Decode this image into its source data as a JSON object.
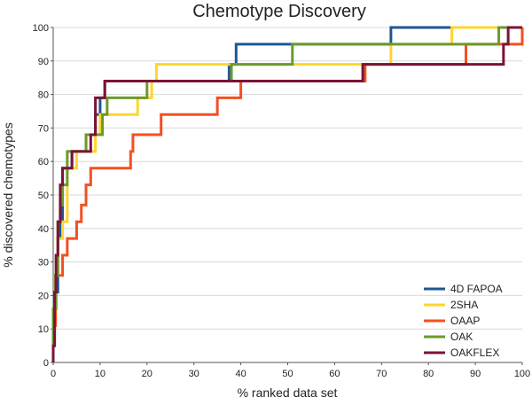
{
  "chart_data": {
    "type": "line",
    "title": "Chemotype Discovery",
    "xlabel": "% ranked data set",
    "ylabel": "% discovered chemotypes",
    "xlim": [
      0,
      100
    ],
    "ylim": [
      0,
      100
    ],
    "xticks": [
      0,
      10,
      20,
      30,
      40,
      50,
      60,
      70,
      80,
      90,
      100
    ],
    "yticks": [
      0,
      10,
      20,
      30,
      40,
      50,
      60,
      70,
      80,
      90,
      100
    ],
    "grid": "horizontal",
    "legend_position": "bottom-right",
    "series": [
      {
        "name": "4D FAPOA",
        "color": "#1f5793",
        "points": [
          [
            0,
            0
          ],
          [
            0,
            5
          ],
          [
            0.3,
            5
          ],
          [
            0.3,
            16
          ],
          [
            0.6,
            16
          ],
          [
            0.6,
            21
          ],
          [
            1,
            21
          ],
          [
            1,
            37
          ],
          [
            1.5,
            37
          ],
          [
            1.5,
            42
          ],
          [
            2,
            42
          ],
          [
            2,
            58
          ],
          [
            4,
            58
          ],
          [
            4,
            63
          ],
          [
            7,
            63
          ],
          [
            7,
            68
          ],
          [
            9,
            68
          ],
          [
            9,
            74
          ],
          [
            10,
            74
          ],
          [
            10,
            79
          ],
          [
            11,
            79
          ],
          [
            11,
            84
          ],
          [
            37.5,
            84
          ],
          [
            37.5,
            89
          ],
          [
            39,
            89
          ],
          [
            39,
            95
          ],
          [
            72,
            95
          ],
          [
            72,
            100
          ],
          [
            100,
            100
          ]
        ]
      },
      {
        "name": "2SHA",
        "color": "#ffd52e",
        "points": [
          [
            0,
            0
          ],
          [
            0,
            11
          ],
          [
            0.5,
            11
          ],
          [
            0.5,
            26
          ],
          [
            1,
            26
          ],
          [
            1,
            37
          ],
          [
            2,
            37
          ],
          [
            2,
            42
          ],
          [
            3,
            42
          ],
          [
            3,
            58
          ],
          [
            5,
            58
          ],
          [
            5,
            63
          ],
          [
            9,
            63
          ],
          [
            9,
            68
          ],
          [
            10,
            68
          ],
          [
            10,
            74
          ],
          [
            18,
            74
          ],
          [
            18,
            79
          ],
          [
            21,
            79
          ],
          [
            21,
            84
          ],
          [
            22,
            84
          ],
          [
            22,
            89
          ],
          [
            72,
            89
          ],
          [
            72,
            95
          ],
          [
            85,
            95
          ],
          [
            85,
            100
          ],
          [
            100,
            100
          ]
        ]
      },
      {
        "name": "OAAP",
        "color": "#f25022",
        "points": [
          [
            0,
            0
          ],
          [
            0,
            11
          ],
          [
            0.5,
            11
          ],
          [
            0.5,
            26
          ],
          [
            2,
            26
          ],
          [
            2,
            32
          ],
          [
            3,
            32
          ],
          [
            3,
            37
          ],
          [
            5,
            37
          ],
          [
            5,
            42
          ],
          [
            6,
            42
          ],
          [
            6,
            47
          ],
          [
            7,
            47
          ],
          [
            7,
            53
          ],
          [
            8,
            53
          ],
          [
            8,
            58
          ],
          [
            16.5,
            58
          ],
          [
            16.5,
            63
          ],
          [
            17,
            63
          ],
          [
            17,
            68
          ],
          [
            23,
            68
          ],
          [
            23,
            74
          ],
          [
            35,
            74
          ],
          [
            35,
            79
          ],
          [
            40,
            79
          ],
          [
            40,
            84
          ],
          [
            66.5,
            84
          ],
          [
            66.5,
            89
          ],
          [
            88,
            89
          ],
          [
            88,
            95
          ],
          [
            100,
            95
          ],
          [
            100,
            100
          ]
        ]
      },
      {
        "name": "OAK",
        "color": "#6c9a2d",
        "points": [
          [
            0,
            0
          ],
          [
            0,
            16
          ],
          [
            0.5,
            16
          ],
          [
            0.5,
            26
          ],
          [
            1,
            26
          ],
          [
            1,
            42
          ],
          [
            1.5,
            42
          ],
          [
            1.5,
            47
          ],
          [
            2,
            47
          ],
          [
            2,
            53
          ],
          [
            3,
            53
          ],
          [
            3,
            63
          ],
          [
            7,
            63
          ],
          [
            7,
            68
          ],
          [
            10.5,
            68
          ],
          [
            10.5,
            74
          ],
          [
            11.5,
            74
          ],
          [
            11.5,
            79
          ],
          [
            20,
            79
          ],
          [
            20,
            84
          ],
          [
            38,
            84
          ],
          [
            38,
            89
          ],
          [
            51,
            89
          ],
          [
            51,
            95
          ],
          [
            95,
            95
          ],
          [
            95,
            100
          ],
          [
            100,
            100
          ]
        ]
      },
      {
        "name": "OAKFLEX",
        "color": "#7a1436",
        "points": [
          [
            0,
            0
          ],
          [
            0,
            5
          ],
          [
            0.3,
            5
          ],
          [
            0.3,
            21
          ],
          [
            0.6,
            21
          ],
          [
            0.6,
            32
          ],
          [
            1,
            32
          ],
          [
            1,
            42
          ],
          [
            1.5,
            42
          ],
          [
            1.5,
            53
          ],
          [
            2,
            53
          ],
          [
            2,
            58
          ],
          [
            4,
            58
          ],
          [
            4,
            63
          ],
          [
            8,
            63
          ],
          [
            8,
            68
          ],
          [
            9,
            68
          ],
          [
            9,
            79
          ],
          [
            11,
            79
          ],
          [
            11,
            84
          ],
          [
            66,
            84
          ],
          [
            66,
            89
          ],
          [
            96,
            89
          ],
          [
            96,
            95
          ],
          [
            97,
            95
          ],
          [
            97,
            100
          ],
          [
            100,
            100
          ]
        ]
      }
    ]
  }
}
